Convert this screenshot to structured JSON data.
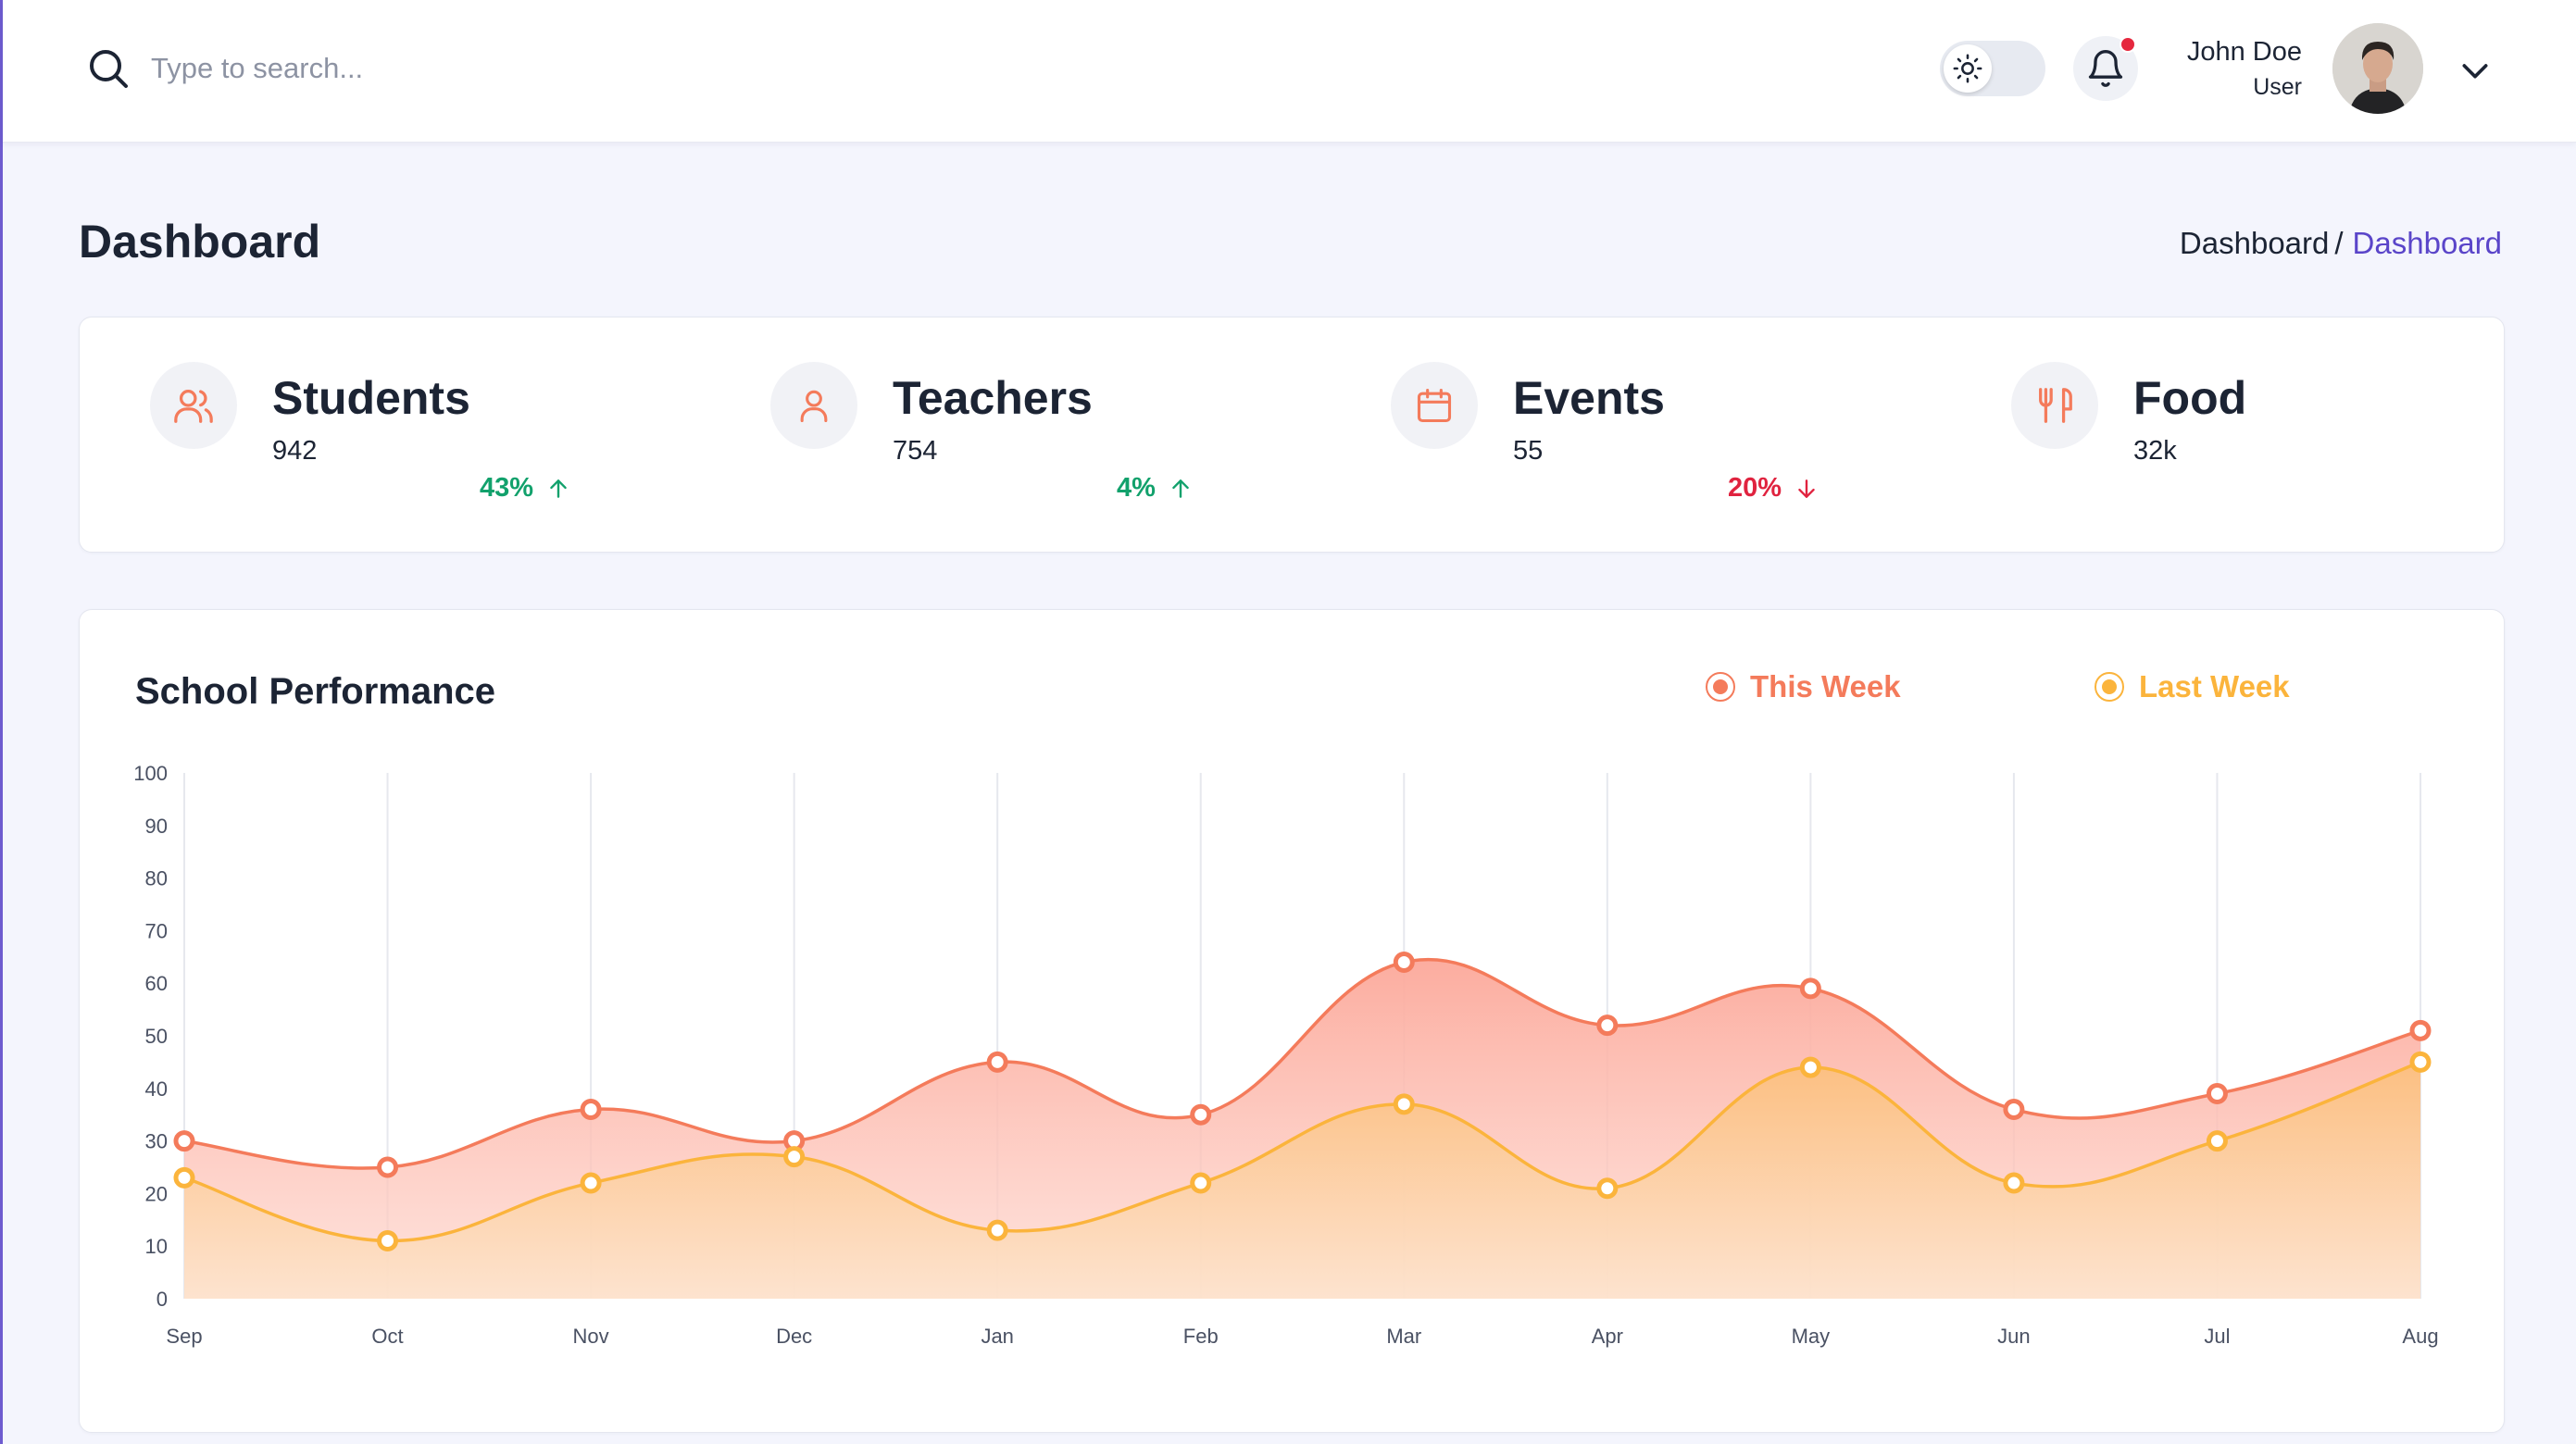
{
  "header": {
    "search_placeholder": "Type to search...",
    "user_name": "John Doe",
    "user_role": "User",
    "notification_dot_color": "#e5283e"
  },
  "page": {
    "title": "Dashboard",
    "breadcrumb": [
      "Dashboard",
      "Dashboard"
    ],
    "breadcrumb_separator": "/"
  },
  "stats": [
    {
      "label": "Students",
      "value": "942",
      "trend": "43%",
      "direction": "up",
      "icon": "users-icon"
    },
    {
      "label": "Teachers",
      "value": "754",
      "trend": "4%",
      "direction": "up",
      "icon": "user-icon"
    },
    {
      "label": "Events",
      "value": "55",
      "trend": "20%",
      "direction": "down",
      "icon": "calendar-icon"
    },
    {
      "label": "Food",
      "value": "32k",
      "icon": "utensils-icon"
    }
  ],
  "colors": {
    "accent": "#f47b5b",
    "this_week": "#f47b5b",
    "last_week": "#fbb43c",
    "link": "#5a45c9",
    "trend_up": "#12a16c",
    "trend_down": "#e0233f"
  },
  "chart_data": {
    "type": "area",
    "title": "School Performance",
    "categories": [
      "Sep",
      "Oct",
      "Nov",
      "Dec",
      "Jan",
      "Feb",
      "Mar",
      "Apr",
      "May",
      "Jun",
      "Jul",
      "Aug"
    ],
    "series": [
      {
        "name": "This Week",
        "values": [
          30,
          25,
          36,
          30,
          45,
          35,
          64,
          52,
          59,
          36,
          39,
          51
        ],
        "color": "#f47b5b"
      },
      {
        "name": "Last Week",
        "values": [
          23,
          11,
          22,
          27,
          13,
          22,
          37,
          21,
          44,
          22,
          30,
          45
        ],
        "color": "#fbb43c"
      }
    ],
    "ylim": [
      0,
      100
    ],
    "yticks": [
      0,
      10,
      20,
      30,
      40,
      50,
      60,
      70,
      80,
      90,
      100
    ],
    "grid": "vertical",
    "legend_position": "top-right"
  }
}
